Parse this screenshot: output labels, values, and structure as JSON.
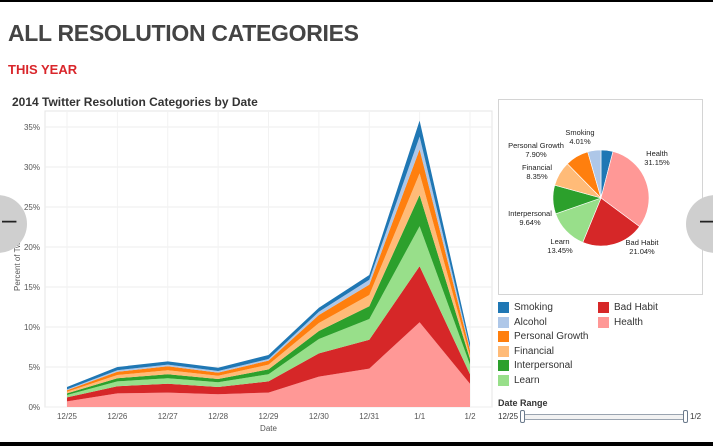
{
  "page": {
    "title": "ALL RESOLUTION CATEGORIES",
    "subtitle": "THIS YEAR"
  },
  "colors": {
    "title": "#444444",
    "subtitle": "#d9262b"
  },
  "chart_data": [
    {
      "type": "area",
      "stacked": true,
      "title": "2014 Twitter Resolution Categories by Date",
      "xlabel": "Date",
      "ylabel": "Percent of Tweets",
      "categories": [
        "12/25",
        "12/26",
        "12/27",
        "12/28",
        "12/29",
        "12/30",
        "12/31",
        "1/1",
        "1/2"
      ],
      "ylim": [
        0,
        37
      ],
      "yticks": [
        0,
        5,
        10,
        15,
        20,
        25,
        30,
        35
      ],
      "ytick_labels": [
        "0%",
        "5%",
        "10%",
        "15%",
        "20%",
        "25%",
        "30%",
        "35%"
      ],
      "grid": true,
      "series": [
        {
          "name": "Health",
          "color": "#ff9896",
          "values": [
            0.7,
            1.7,
            1.8,
            1.6,
            1.8,
            3.8,
            4.8,
            10.6,
            2.9
          ]
        },
        {
          "name": "Bad Habit",
          "color": "#d62728",
          "values": [
            0.5,
            0.9,
            1.1,
            0.9,
            1.4,
            2.9,
            3.6,
            7.0,
            1.2
          ]
        },
        {
          "name": "Learn",
          "color": "#98df8a",
          "values": [
            0.3,
            0.6,
            0.7,
            0.6,
            0.9,
            1.8,
            2.6,
            5.0,
            1.2
          ]
        },
        {
          "name": "Interpersonal",
          "color": "#2ca02c",
          "values": [
            0.2,
            0.4,
            0.5,
            0.4,
            0.6,
            1.0,
            1.6,
            3.9,
            0.7
          ]
        },
        {
          "name": "Financial",
          "color": "#ffbb78",
          "values": [
            0.2,
            0.4,
            0.5,
            0.4,
            0.6,
            1.0,
            1.4,
            2.7,
            0.4
          ]
        },
        {
          "name": "Personal Growth",
          "color": "#ff7f0e",
          "values": [
            0.2,
            0.4,
            0.5,
            0.4,
            0.5,
            1.0,
            1.3,
            3.0,
            0.7
          ]
        },
        {
          "name": "Alcohol",
          "color": "#aec7e8",
          "values": [
            0.1,
            0.2,
            0.2,
            0.2,
            0.2,
            0.4,
            0.6,
            1.6,
            0.3
          ]
        },
        {
          "name": "Smoking",
          "color": "#1f77b4",
          "values": [
            0.3,
            0.4,
            0.4,
            0.4,
            0.5,
            0.5,
            0.6,
            2.0,
            0.6
          ]
        }
      ]
    },
    {
      "type": "pie",
      "slices": [
        {
          "name": "Smoking",
          "value": 4.01,
          "label": "Smoking\n4.01%",
          "color": "#1f77b4"
        },
        {
          "name": "Health",
          "value": 31.15,
          "label": "Health\n31.15%",
          "color": "#ff9896"
        },
        {
          "name": "Bad Habit",
          "value": 21.04,
          "label": "Bad Habit\n21.04%",
          "color": "#d62728"
        },
        {
          "name": "Learn",
          "value": 13.45,
          "label": "Learn\n13.45%",
          "color": "#98df8a"
        },
        {
          "name": "Interpersonal",
          "value": 9.64,
          "label": "Interpersonal\n9.64%",
          "color": "#2ca02c"
        },
        {
          "name": "Financial",
          "value": 8.35,
          "label": "Financial\n8.35%",
          "color": "#ffbb78"
        },
        {
          "name": "Personal Growth",
          "value": 7.9,
          "label": "Personal Growth\n7.90%",
          "color": "#ff7f0e"
        },
        {
          "name": "Alcohol",
          "value": 4.46,
          "label": "",
          "color": "#aec7e8"
        }
      ]
    }
  ],
  "legend": {
    "items": [
      {
        "label": "Smoking",
        "color": "#1f77b4"
      },
      {
        "label": "Bad Habit",
        "color": "#d62728"
      },
      {
        "label": "Alcohol",
        "color": "#aec7e8"
      },
      {
        "label": "Health",
        "color": "#ff9896"
      },
      {
        "label": "Personal Growth",
        "color": "#ff7f0e"
      },
      {
        "label": "Financial",
        "color": "#ffbb78"
      },
      {
        "label": "Interpersonal",
        "color": "#2ca02c"
      },
      {
        "label": "Learn",
        "color": "#98df8a"
      }
    ]
  },
  "date_range": {
    "title": "Date Range",
    "start": "12/25",
    "end": "1/2",
    "selected_fraction": [
      0,
      1
    ]
  },
  "nav": {
    "prev_icon": "minus-icon",
    "next_icon": "minus-icon",
    "prev_glyph": "–",
    "next_glyph": "–"
  }
}
